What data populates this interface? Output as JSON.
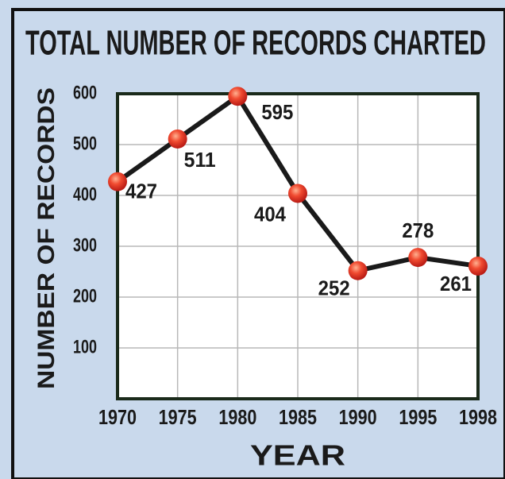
{
  "chart_data": {
    "type": "line",
    "title": "TOTAL NUMBER OF RECORDS CHARTED",
    "x_label": "YEAR",
    "y_label": "NUMBER OF RECORDS",
    "categories": [
      "1970",
      "1975",
      "1980",
      "1985",
      "1990",
      "1995",
      "1998"
    ],
    "values": [
      427,
      511,
      595,
      404,
      252,
      278,
      261
    ],
    "color": "#e8402a",
    "line_color": "#1a1a1a",
    "ylim": [
      0,
      600
    ],
    "yticks": [
      100,
      200,
      300,
      400,
      500,
      600
    ],
    "grid": true
  }
}
